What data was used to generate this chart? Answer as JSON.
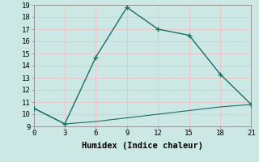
{
  "xlabel": "Humidex (Indice chaleur)",
  "ylabel": "",
  "bg_color": "#cce8e4",
  "grid_color": "#b0d8d2",
  "line_color": "#1a6e64",
  "line1_x": [
    0,
    3,
    6,
    9,
    12,
    15,
    18,
    21
  ],
  "line1_y": [
    10.5,
    9.2,
    14.7,
    18.8,
    17.0,
    16.5,
    13.3,
    10.8
  ],
  "line2_x": [
    0,
    3,
    6,
    9,
    12,
    15,
    18,
    21
  ],
  "line2_y": [
    10.5,
    9.2,
    9.4,
    9.7,
    10.0,
    10.3,
    10.6,
    10.8
  ],
  "xlim": [
    0,
    21
  ],
  "ylim": [
    9,
    19
  ],
  "xticks": [
    0,
    3,
    6,
    9,
    12,
    15,
    18,
    21
  ],
  "yticks": [
    9,
    10,
    11,
    12,
    13,
    14,
    15,
    16,
    17,
    18,
    19
  ],
  "tick_fontsize": 6.5,
  "xlabel_fontsize": 7.5
}
